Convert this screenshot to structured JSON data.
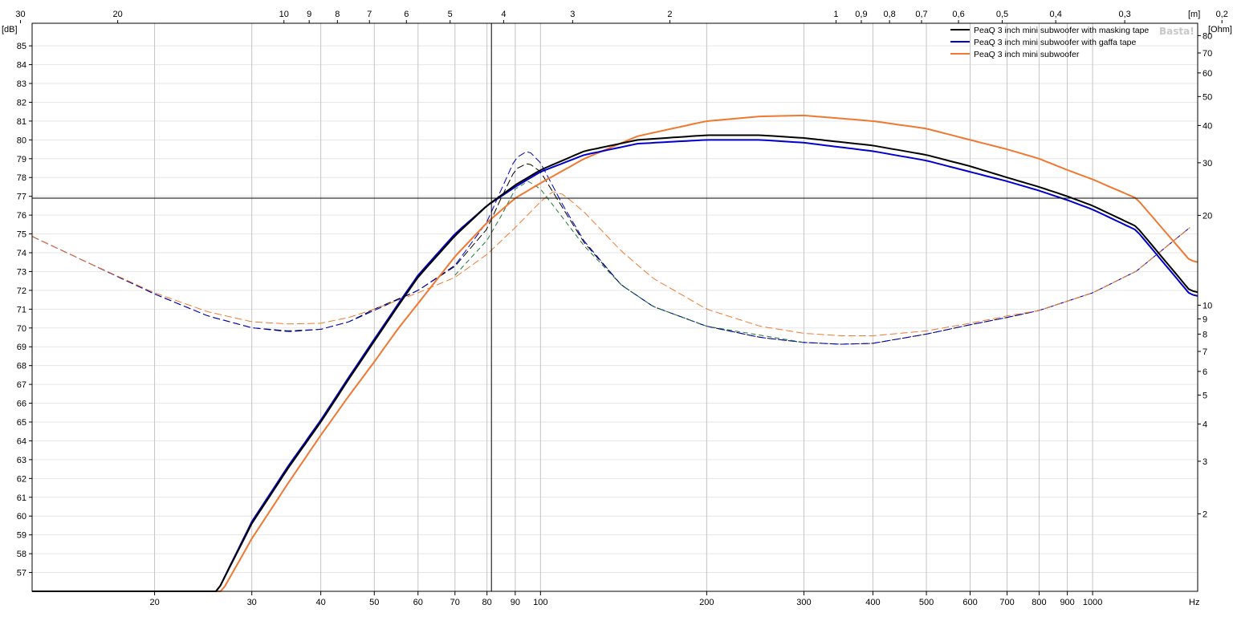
{
  "chart_data": {
    "type": "line",
    "title": "",
    "watermark": "Basta!",
    "x_axis": {
      "scale": "log",
      "range": [
        12,
        1550
      ],
      "unit": "Hz",
      "ticks": [
        20,
        30,
        40,
        50,
        60,
        70,
        80,
        90,
        100,
        200,
        300,
        400,
        500,
        600,
        700,
        800,
        900,
        1000
      ],
      "tick_labels": [
        "20",
        "30",
        "40",
        "50",
        "60",
        "70",
        "80",
        "90",
        "100",
        "200",
        "300",
        "400",
        "500",
        "600",
        "700",
        "800",
        "900",
        "1000"
      ],
      "major_gridlines": [
        20,
        30,
        40,
        50,
        60,
        70,
        80,
        90,
        100,
        200,
        300,
        400,
        500,
        600,
        700,
        800,
        900,
        1000
      ]
    },
    "top_axis": {
      "unit": "[m]",
      "ticks": [
        30,
        20,
        10,
        9,
        8,
        7,
        6,
        5,
        4,
        3,
        2,
        1,
        0.9,
        0.8,
        0.7,
        0.6,
        0.5,
        0.4,
        0.3,
        0.2
      ],
      "tick_labels": [
        "30",
        "20",
        "10",
        "9",
        "8",
        "7",
        "6",
        "5",
        "4",
        "3",
        "2",
        "1",
        "0,9",
        "0,8",
        "0,7",
        "0,6",
        "0,5",
        "0,4",
        "0,3",
        "0,2"
      ]
    },
    "y_left": {
      "unit": "[dB]",
      "range": [
        56,
        86.2
      ],
      "ticks": [
        57,
        58,
        59,
        60,
        61,
        62,
        63,
        64,
        65,
        66,
        67,
        68,
        69,
        70,
        71,
        72,
        73,
        74,
        75,
        76,
        77,
        78,
        79,
        80,
        81,
        82,
        83,
        84,
        85
      ],
      "tick_labels": [
        "57",
        "58",
        "59",
        "60",
        "61",
        "62",
        "63",
        "64",
        "65",
        "66",
        "67",
        "68",
        "69",
        "70",
        "71",
        "72",
        "73",
        "74",
        "75",
        "76",
        "77",
        "78",
        "79",
        "80",
        "81",
        "82",
        "83",
        "84",
        "85"
      ]
    },
    "y_right": {
      "unit": "[Ohm]",
      "scale": "log",
      "range": [
        1.1,
        88
      ],
      "ticks": [
        2,
        3,
        4,
        5,
        6,
        7,
        8,
        9,
        10,
        20,
        30,
        40,
        50,
        60,
        70,
        80
      ],
      "tick_labels": [
        "2",
        "3",
        "4",
        "5",
        "6",
        "7",
        "8",
        "9",
        "10",
        "20",
        "30",
        "40",
        "50",
        "60",
        "70",
        "80"
      ]
    },
    "cursor": {
      "x": 81.5,
      "y_db": 76.9
    },
    "legend_position": "top-right",
    "series": [
      {
        "name": "PeaQ 3 inch mini subwoofer with masking tape",
        "color": "#000000",
        "spl_points": [
          [
            12,
            56
          ],
          [
            26,
            56
          ],
          [
            30,
            59.6
          ],
          [
            35,
            62.6
          ],
          [
            40,
            65.0
          ],
          [
            45,
            67.3
          ],
          [
            50,
            69.3
          ],
          [
            55,
            71.1
          ],
          [
            60,
            72.7
          ],
          [
            70,
            74.9
          ],
          [
            80,
            76.5
          ],
          [
            90,
            77.6
          ],
          [
            100,
            78.4
          ],
          [
            120,
            79.4
          ],
          [
            150,
            80.0
          ],
          [
            200,
            80.25
          ],
          [
            250,
            80.25
          ],
          [
            300,
            80.1
          ],
          [
            400,
            79.7
          ],
          [
            500,
            79.2
          ],
          [
            600,
            78.6
          ],
          [
            700,
            78.0
          ],
          [
            800,
            77.5
          ],
          [
            900,
            77.0
          ],
          [
            1000,
            76.5
          ],
          [
            1200,
            75.4
          ],
          [
            1500,
            72.0
          ],
          [
            1550,
            71.9
          ]
        ],
        "impedance_points": [
          [
            12,
            17.0
          ],
          [
            15,
            14.0
          ],
          [
            20,
            10.9
          ],
          [
            25,
            9.2
          ],
          [
            30,
            8.4
          ],
          [
            35,
            8.2
          ],
          [
            40,
            8.3
          ],
          [
            45,
            8.8
          ],
          [
            50,
            9.7
          ],
          [
            60,
            11.2
          ],
          [
            70,
            13.5
          ],
          [
            80,
            18.0
          ],
          [
            85,
            23.0
          ],
          [
            90,
            28.5
          ],
          [
            95,
            30.0
          ],
          [
            100,
            28.0
          ],
          [
            110,
            21.0
          ],
          [
            120,
            16.2
          ],
          [
            140,
            11.7
          ],
          [
            160,
            9.9
          ],
          [
            200,
            8.5
          ],
          [
            250,
            7.8
          ],
          [
            300,
            7.5
          ],
          [
            350,
            7.4
          ],
          [
            400,
            7.45
          ],
          [
            500,
            8.0
          ],
          [
            600,
            8.6
          ],
          [
            700,
            9.1
          ],
          [
            800,
            9.6
          ],
          [
            1000,
            11.0
          ],
          [
            1200,
            13.0
          ],
          [
            1500,
            18.2
          ]
        ]
      },
      {
        "name": "PeaQ 3 inch mini subwoofer with gaffa tape",
        "color": "#0000cc",
        "spl_points": [
          [
            12,
            56
          ],
          [
            26,
            56
          ],
          [
            30,
            59.7
          ],
          [
            35,
            62.7
          ],
          [
            40,
            65.1
          ],
          [
            45,
            67.4
          ],
          [
            50,
            69.4
          ],
          [
            55,
            71.2
          ],
          [
            60,
            72.8
          ],
          [
            70,
            75.0
          ],
          [
            80,
            76.5
          ],
          [
            90,
            77.5
          ],
          [
            100,
            78.3
          ],
          [
            120,
            79.2
          ],
          [
            150,
            79.8
          ],
          [
            200,
            80.0
          ],
          [
            250,
            80.0
          ],
          [
            300,
            79.85
          ],
          [
            400,
            79.4
          ],
          [
            500,
            78.9
          ],
          [
            600,
            78.3
          ],
          [
            700,
            77.8
          ],
          [
            800,
            77.3
          ],
          [
            900,
            76.8
          ],
          [
            1000,
            76.3
          ],
          [
            1200,
            75.2
          ],
          [
            1500,
            71.8
          ],
          [
            1550,
            71.7
          ]
        ],
        "impedance_points": [
          [
            12,
            17.0
          ],
          [
            15,
            14.0
          ],
          [
            20,
            10.9
          ],
          [
            25,
            9.2
          ],
          [
            30,
            8.4
          ],
          [
            35,
            8.15
          ],
          [
            40,
            8.3
          ],
          [
            45,
            8.8
          ],
          [
            50,
            9.6
          ],
          [
            60,
            11.2
          ],
          [
            70,
            13.6
          ],
          [
            80,
            19.0
          ],
          [
            85,
            24.5
          ],
          [
            90,
            31.0
          ],
          [
            95,
            33.0
          ],
          [
            100,
            30.0
          ],
          [
            110,
            21.5
          ],
          [
            120,
            16.4
          ],
          [
            140,
            11.7
          ],
          [
            160,
            9.9
          ],
          [
            200,
            8.5
          ],
          [
            250,
            7.8
          ],
          [
            300,
            7.5
          ],
          [
            350,
            7.4
          ],
          [
            400,
            7.45
          ],
          [
            500,
            8.0
          ],
          [
            600,
            8.6
          ],
          [
            700,
            9.1
          ],
          [
            800,
            9.6
          ],
          [
            1000,
            11.0
          ],
          [
            1200,
            13.0
          ],
          [
            1500,
            18.2
          ]
        ]
      },
      {
        "name": "PeaQ 3 inch mini subwoofer",
        "color": "#f07830",
        "spl_points": [
          [
            12,
            56
          ],
          [
            26.5,
            56
          ],
          [
            30,
            58.8
          ],
          [
            35,
            61.8
          ],
          [
            40,
            64.3
          ],
          [
            45,
            66.4
          ],
          [
            50,
            68.2
          ],
          [
            55,
            69.9
          ],
          [
            60,
            71.3
          ],
          [
            70,
            73.8
          ],
          [
            80,
            75.6
          ],
          [
            90,
            76.9
          ],
          [
            100,
            77.7
          ],
          [
            120,
            79.0
          ],
          [
            150,
            80.2
          ],
          [
            200,
            81.0
          ],
          [
            250,
            81.25
          ],
          [
            300,
            81.3
          ],
          [
            400,
            81.0
          ],
          [
            500,
            80.6
          ],
          [
            600,
            80.0
          ],
          [
            700,
            79.5
          ],
          [
            800,
            79.0
          ],
          [
            900,
            78.4
          ],
          [
            1000,
            77.9
          ],
          [
            1200,
            76.9
          ],
          [
            1500,
            73.6
          ],
          [
            1550,
            73.5
          ]
        ],
        "impedance_points": [
          [
            12,
            17.0
          ],
          [
            15,
            14.0
          ],
          [
            20,
            11.0
          ],
          [
            25,
            9.5
          ],
          [
            30,
            8.8
          ],
          [
            35,
            8.65
          ],
          [
            40,
            8.7
          ],
          [
            45,
            9.1
          ],
          [
            50,
            9.7
          ],
          [
            60,
            11.0
          ],
          [
            70,
            12.4
          ],
          [
            80,
            14.8
          ],
          [
            90,
            18.2
          ],
          [
            100,
            22.2
          ],
          [
            105,
            24.0
          ],
          [
            110,
            23.5
          ],
          [
            120,
            20.5
          ],
          [
            140,
            15.2
          ],
          [
            160,
            12.3
          ],
          [
            200,
            9.7
          ],
          [
            250,
            8.5
          ],
          [
            300,
            8.05
          ],
          [
            350,
            7.9
          ],
          [
            400,
            7.9
          ],
          [
            500,
            8.2
          ],
          [
            600,
            8.7
          ],
          [
            700,
            9.2
          ],
          [
            800,
            9.6
          ],
          [
            1000,
            11.0
          ],
          [
            1200,
            13.0
          ],
          [
            1500,
            18.2
          ]
        ]
      }
    ],
    "extra_impedance_trace": {
      "color": "#1a7a3a",
      "impedance_points": [
        [
          70,
          12.6
        ],
        [
          80,
          16.5
        ],
        [
          85,
          20.0
        ],
        [
          90,
          24.5
        ],
        [
          95,
          26.0
        ],
        [
          100,
          24.5
        ],
        [
          110,
          19.5
        ],
        [
          120,
          15.8
        ],
        [
          140,
          11.7
        ],
        [
          160,
          9.9
        ],
        [
          200,
          8.5
        ],
        [
          300,
          7.5
        ]
      ]
    }
  }
}
